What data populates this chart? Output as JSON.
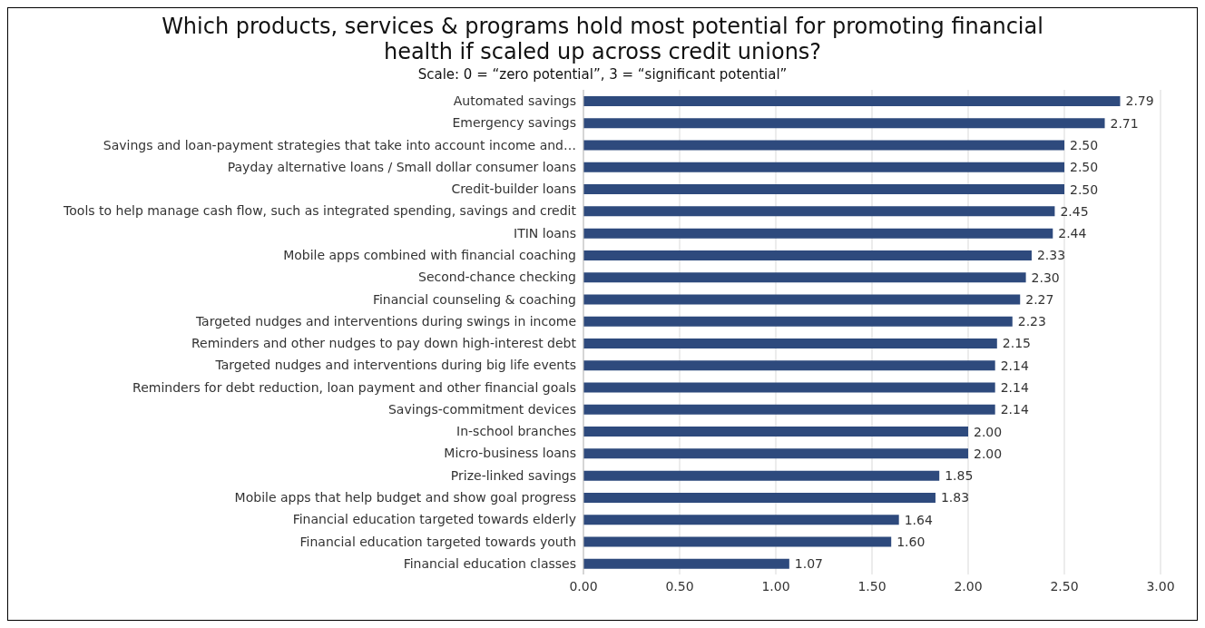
{
  "chart_data": {
    "type": "bar",
    "orientation": "horizontal",
    "title": "Which products, services & programs hold most potential for promoting financial health if scaled up across credit unions?",
    "subtitle": "Scale: 0 = “zero potential”, 3 = “significant potential”",
    "categories": [
      "Automated savings",
      "Emergency savings",
      "Savings and loan-payment strategies that take into account income and…",
      "Payday alternative loans / Small dollar consumer loans",
      "Credit-builder loans",
      "Tools to help manage cash flow, such as integrated spending, savings and credit",
      "ITIN loans",
      "Mobile apps combined with financial coaching",
      "Second-chance checking",
      "Financial counseling & coaching",
      "Targeted nudges and interventions during swings in income",
      "Reminders and other nudges to pay down high-interest debt",
      "Targeted nudges and interventions during big life events",
      "Reminders for debt reduction, loan payment and other financial goals",
      "Savings-commitment devices",
      "In-school branches",
      "Micro-business loans",
      "Prize-linked savings",
      "Mobile apps that help budget and show goal progress",
      "Financial education targeted towards elderly",
      "Financial education targeted towards youth",
      "Financial education classes"
    ],
    "values": [
      2.79,
      2.71,
      2.5,
      2.5,
      2.5,
      2.45,
      2.44,
      2.33,
      2.3,
      2.27,
      2.23,
      2.15,
      2.14,
      2.14,
      2.14,
      2.0,
      2.0,
      1.85,
      1.83,
      1.64,
      1.6,
      1.07
    ],
    "value_labels": [
      "2.79",
      "2.71",
      "2.50",
      "2.50",
      "2.50",
      "2.45",
      "2.44",
      "2.33",
      "2.30",
      "2.27",
      "2.23",
      "2.15",
      "2.14",
      "2.14",
      "2.14",
      "2.00",
      "2.00",
      "1.85",
      "1.83",
      "1.64",
      "1.60",
      "1.07"
    ],
    "color": "#2e4a7d",
    "xlim": [
      0,
      3
    ],
    "xticks": [
      {
        "value": 0,
        "label": "0.00"
      },
      {
        "value": 0.5,
        "label": "0.50"
      },
      {
        "value": 1,
        "label": "1.00"
      },
      {
        "value": 1.5,
        "label": "1.50"
      },
      {
        "value": 2,
        "label": "2.00"
      },
      {
        "value": 2.5,
        "label": "2.50"
      },
      {
        "value": 3,
        "label": "3.00"
      }
    ],
    "grid": "x"
  }
}
